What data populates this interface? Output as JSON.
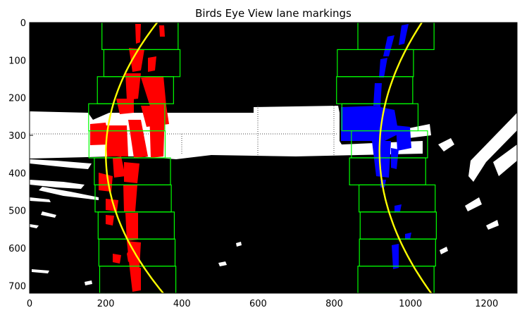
{
  "chart_data": {
    "type": "image-overlay",
    "title": "Birds Eye View lane markings",
    "xlim": [
      0,
      1280
    ],
    "ylim": [
      720,
      0
    ],
    "x_ticks": [
      0,
      200,
      400,
      600,
      800,
      1000,
      1200
    ],
    "y_ticks": [
      0,
      100,
      200,
      300,
      400,
      500,
      600,
      700
    ],
    "grid": false,
    "colors": {
      "background": "#000000",
      "road_mask": "#ffffff",
      "left_lane_pixels": "#ff0000",
      "right_lane_pixels": "#0000ff",
      "windows": "#00ff00",
      "fit_curves": "#ffff00"
    },
    "left_windows": [
      {
        "x": [
          190,
          390
        ],
        "y": [
          0,
          72
        ]
      },
      {
        "x": [
          195,
          395
        ],
        "y": [
          72,
          144
        ]
      },
      {
        "x": [
          178,
          378
        ],
        "y": [
          144,
          216
        ]
      },
      {
        "x": [
          155,
          355
        ],
        "y": [
          216,
          288
        ]
      },
      {
        "x": [
          156,
          356
        ],
        "y": [
          288,
          360
        ]
      },
      {
        "x": [
          170,
          370
        ],
        "y": [
          360,
          432
        ]
      },
      {
        "x": [
          172,
          372
        ],
        "y": [
          432,
          504
        ]
      },
      {
        "x": [
          180,
          380
        ],
        "y": [
          504,
          576
        ]
      },
      {
        "x": [
          182,
          382
        ],
        "y": [
          576,
          648
        ]
      },
      {
        "x": [
          184,
          384
        ],
        "y": [
          648,
          720
        ]
      }
    ],
    "right_windows": [
      {
        "x": [
          862,
          1062
        ],
        "y": [
          0,
          72
        ]
      },
      {
        "x": [
          808,
          1008
        ],
        "y": [
          72,
          144
        ]
      },
      {
        "x": [
          806,
          1006
        ],
        "y": [
          144,
          216
        ]
      },
      {
        "x": [
          820,
          1020
        ],
        "y": [
          216,
          288
        ]
      },
      {
        "x": [
          845,
          1045
        ],
        "y": [
          288,
          360
        ]
      },
      {
        "x": [
          840,
          1040
        ],
        "y": [
          360,
          432
        ]
      },
      {
        "x": [
          865,
          1065
        ],
        "y": [
          432,
          504
        ]
      },
      {
        "x": [
          868,
          1068
        ],
        "y": [
          504,
          576
        ]
      },
      {
        "x": [
          866,
          1066
        ],
        "y": [
          576,
          648
        ]
      },
      {
        "x": [
          862,
          1062
        ],
        "y": [
          648,
          720
        ]
      }
    ],
    "left_fit": {
      "a": 0.0011,
      "b": -0.77,
      "c": 335
    },
    "right_fit": {
      "a": 0.00095,
      "b": -0.65,
      "c": 1030
    }
  }
}
